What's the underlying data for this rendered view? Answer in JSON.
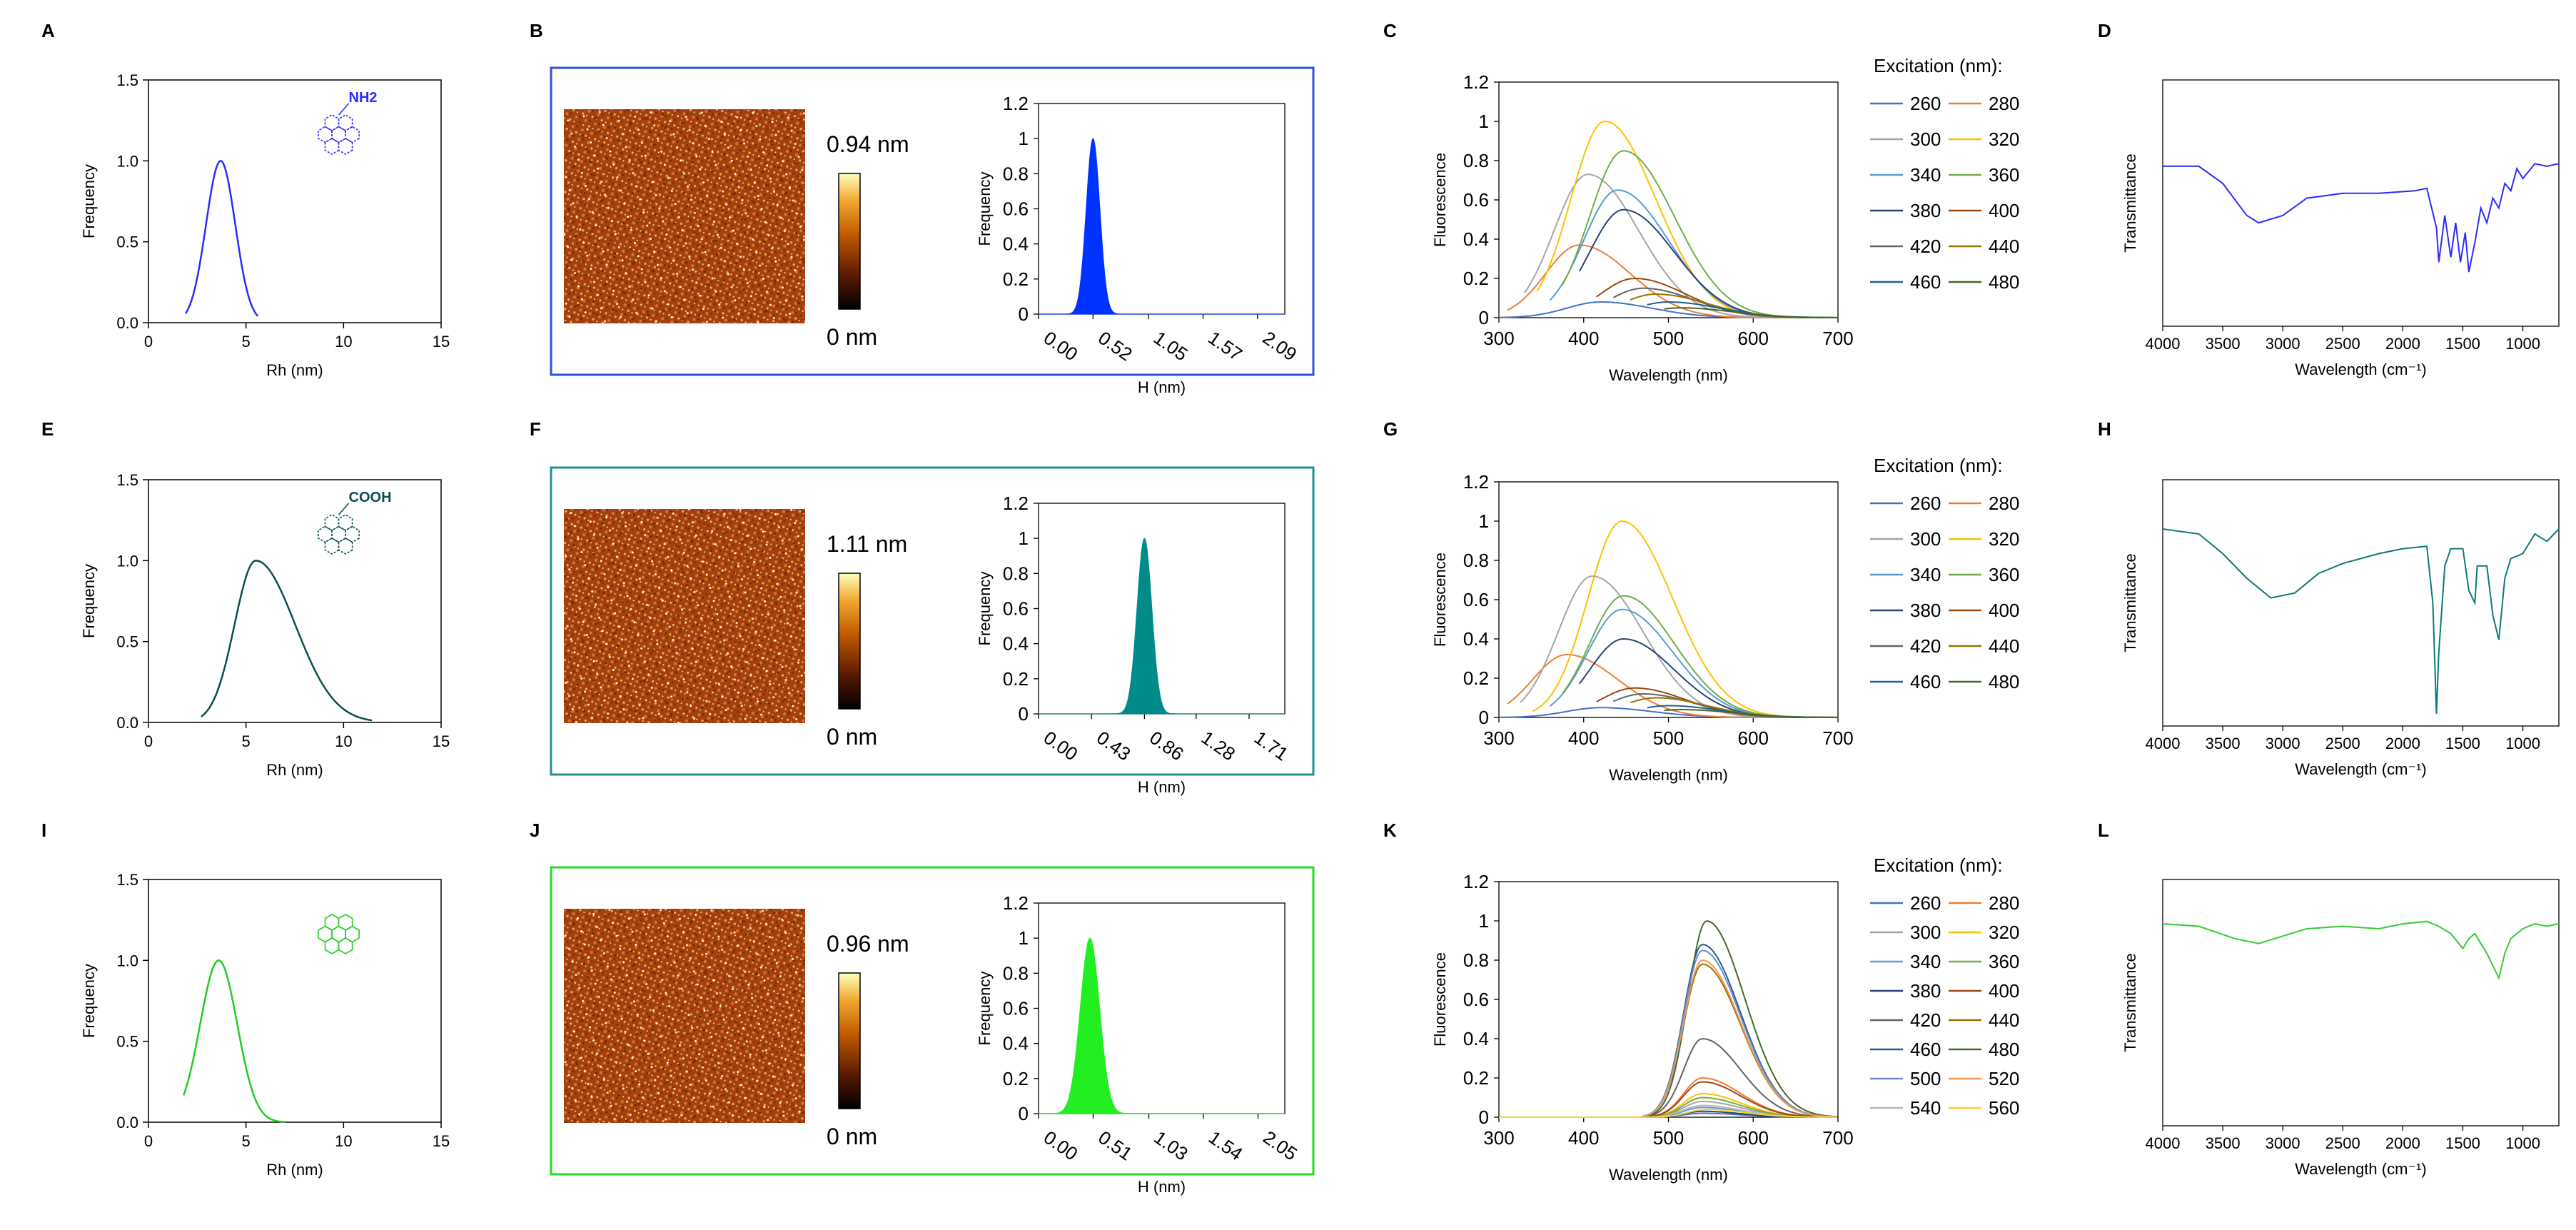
{
  "panels": {
    "labels": [
      "A",
      "B",
      "C",
      "D",
      "E",
      "F",
      "G",
      "H",
      "I",
      "J",
      "K",
      "L"
    ]
  },
  "chart_data": [
    {
      "panel": "A",
      "type": "line",
      "xlabel": "Rh (nm)",
      "ylabel": "Frequency",
      "xlim": [
        0,
        15
      ],
      "ylim": [
        0,
        1.5
      ],
      "xticks": [
        "0",
        "5",
        "10",
        "15"
      ],
      "yticks": [
        "0.0",
        "0.5",
        "1.0",
        "1.5"
      ],
      "series": [
        {
          "color": "#2b2bff",
          "center": 3.7,
          "width": 0.75,
          "x": [
            1.9,
            5.6
          ],
          "values": [
            [
              1.9,
              0.0
            ],
            [
              2.5,
              0.14
            ],
            [
              3.0,
              0.58
            ],
            [
              3.7,
              1.0
            ],
            [
              4.4,
              0.58
            ],
            [
              4.9,
              0.14
            ],
            [
              5.6,
              0.0
            ]
          ]
        }
      ],
      "annotation": "NH2"
    },
    {
      "panel": "E",
      "type": "line",
      "xlabel": "Rh (nm)",
      "ylabel": "Frequency",
      "xlim": [
        0,
        15
      ],
      "ylim": [
        0,
        1.5
      ],
      "xticks": [
        "0",
        "5",
        "10",
        "15"
      ],
      "yticks": [
        "0.0",
        "0.5",
        "1.0",
        "1.5"
      ],
      "series": [
        {
          "color": "#0b4f4f",
          "center": 5.5,
          "width": 1.55,
          "x": [
            2.7,
            11.5
          ],
          "values": [
            [
              3.2,
              0.05
            ],
            [
              4.5,
              0.6
            ],
            [
              5.5,
              1.0
            ],
            [
              6.5,
              0.7
            ],
            [
              8.0,
              0.25
            ],
            [
              10.0,
              0.03
            ],
            [
              11.5,
              0.0
            ]
          ]
        }
      ],
      "annotation": "COOH"
    },
    {
      "panel": "I",
      "type": "line",
      "xlabel": "Rh (nm)",
      "ylabel": "Frequency",
      "xlim": [
        0,
        15
      ],
      "ylim": [
        0,
        1.5
      ],
      "xticks": [
        "0",
        "5",
        "10",
        "15"
      ],
      "yticks": [
        "0.0",
        "0.5",
        "1.0",
        "1.5"
      ],
      "series": [
        {
          "color": "#22cc22",
          "center": 3.6,
          "width": 0.95,
          "x": [
            1.8,
            7.0
          ],
          "values": [
            [
              2.0,
              0.02
            ],
            [
              2.8,
              0.5
            ],
            [
              3.6,
              1.0
            ],
            [
              4.5,
              0.5
            ],
            [
              5.5,
              0.08
            ],
            [
              7.0,
              0.0
            ]
          ]
        }
      ]
    },
    {
      "panel": "B",
      "type": "bar",
      "xlabel": "H (nm)",
      "ylabel": "Frequency",
      "ylim": [
        0,
        1.2
      ],
      "yticks": [
        "0",
        "0.2",
        "0.4",
        "0.6",
        "0.8",
        "1",
        "1.2"
      ],
      "xticks": [
        "0.00",
        "0.52",
        "1.05",
        "1.57",
        "2.09"
      ],
      "xmax": 2.35,
      "colorbar": {
        "max": "0.94 nm",
        "min": "0 nm"
      },
      "series": [
        {
          "color": "#0033ff",
          "center": 0.52,
          "width": 0.065
        }
      ]
    },
    {
      "panel": "F",
      "type": "bar",
      "xlabel": "H (nm)",
      "ylabel": "Frequency",
      "ylim": [
        0,
        1.2
      ],
      "yticks": [
        "0",
        "0.2",
        "0.4",
        "0.6",
        "0.8",
        "1",
        "1.2"
      ],
      "xticks": [
        "0.00",
        "0.43",
        "0.86",
        "1.28",
        "1.71"
      ],
      "xmax": 2.0,
      "colorbar": {
        "max": "1.11 nm",
        "min": "0 nm"
      },
      "series": [
        {
          "color": "#008b8b",
          "center": 0.86,
          "width": 0.06
        }
      ]
    },
    {
      "panel": "J",
      "type": "bar",
      "xlabel": "H (nm)",
      "ylabel": "Frequency",
      "ylim": [
        0,
        1.2
      ],
      "yticks": [
        "0",
        "0.2",
        "0.4",
        "0.6",
        "0.8",
        "1",
        "1.2"
      ],
      "xticks": [
        "0.00",
        "0.51",
        "1.03",
        "1.54",
        "2.05"
      ],
      "xmax": 2.3,
      "colorbar": {
        "max": "0.96 nm",
        "min": "0 nm"
      },
      "series": [
        {
          "color": "#22ee22",
          "center": 0.48,
          "width": 0.09
        }
      ]
    },
    {
      "panel": "C",
      "type": "line",
      "xlabel": "Wavelength (nm)",
      "ylabel": "Fluorescence",
      "xlim": [
        300,
        700
      ],
      "ylim": [
        0,
        1.2
      ],
      "xticks": [
        "300",
        "400",
        "500",
        "600",
        "700"
      ],
      "yticks": [
        "0",
        "0.2",
        "0.4",
        "0.6",
        "0.8",
        "1",
        "1.2"
      ],
      "legend_title": "Excitation (nm):",
      "series": [
        {
          "name": "260",
          "color": "#4472c4",
          "peak": 420,
          "amp": 0.08,
          "start": 300
        },
        {
          "name": "280",
          "color": "#ed7d31",
          "peak": 395,
          "amp": 0.37,
          "start": 310
        },
        {
          "name": "300",
          "color": "#a5a5a5",
          "peak": 405,
          "amp": 0.73,
          "start": 330
        },
        {
          "name": "320",
          "color": "#ffc000",
          "peak": 425,
          "amp": 1.0,
          "start": 345
        },
        {
          "name": "340",
          "color": "#5b9bd5",
          "peak": 440,
          "amp": 0.65,
          "start": 360
        },
        {
          "name": "360",
          "color": "#70ad47",
          "peak": 447,
          "amp": 0.85,
          "start": 375
        },
        {
          "name": "380",
          "color": "#264478",
          "peak": 447,
          "amp": 0.55,
          "start": 395
        },
        {
          "name": "400",
          "color": "#9e480e",
          "peak": 460,
          "amp": 0.2,
          "start": 415
        },
        {
          "name": "420",
          "color": "#636363",
          "peak": 470,
          "amp": 0.15,
          "start": 435
        },
        {
          "name": "440",
          "color": "#997300",
          "peak": 485,
          "amp": 0.12,
          "start": 455
        },
        {
          "name": "460",
          "color": "#255e91",
          "peak": 500,
          "amp": 0.08,
          "start": 475
        },
        {
          "name": "480",
          "color": "#43682b",
          "peak": 515,
          "amp": 0.05,
          "start": 495
        }
      ]
    },
    {
      "panel": "G",
      "type": "line",
      "xlabel": "Wavelength (nm)",
      "ylabel": "Fluorescence",
      "xlim": [
        300,
        700
      ],
      "ylim": [
        0,
        1.2
      ],
      "xticks": [
        "300",
        "400",
        "500",
        "600",
        "700"
      ],
      "yticks": [
        "0",
        "0.2",
        "0.4",
        "0.6",
        "0.8",
        "1",
        "1.2"
      ],
      "legend_title": "Excitation (nm):",
      "series": [
        {
          "name": "260",
          "color": "#4472c4",
          "peak": 420,
          "amp": 0.05,
          "start": 300
        },
        {
          "name": "280",
          "color": "#ed7d31",
          "peak": 380,
          "amp": 0.32,
          "start": 310
        },
        {
          "name": "300",
          "color": "#a5a5a5",
          "peak": 410,
          "amp": 0.72,
          "start": 325
        },
        {
          "name": "320",
          "color": "#ffc000",
          "peak": 445,
          "amp": 1.0,
          "start": 340
        },
        {
          "name": "340",
          "color": "#5b9bd5",
          "peak": 445,
          "amp": 0.55,
          "start": 360
        },
        {
          "name": "360",
          "color": "#70ad47",
          "peak": 447,
          "amp": 0.62,
          "start": 375
        },
        {
          "name": "380",
          "color": "#264478",
          "peak": 447,
          "amp": 0.4,
          "start": 395
        },
        {
          "name": "400",
          "color": "#9e480e",
          "peak": 460,
          "amp": 0.15,
          "start": 415
        },
        {
          "name": "420",
          "color": "#636363",
          "peak": 470,
          "amp": 0.12,
          "start": 435
        },
        {
          "name": "440",
          "color": "#997300",
          "peak": 485,
          "amp": 0.1,
          "start": 455
        },
        {
          "name": "460",
          "color": "#255e91",
          "peak": 500,
          "amp": 0.06,
          "start": 475
        },
        {
          "name": "480",
          "color": "#43682b",
          "peak": 515,
          "amp": 0.04,
          "start": 495
        }
      ]
    },
    {
      "panel": "K",
      "type": "line",
      "xlabel": "Wavelength (nm)",
      "ylabel": "Fluorescence",
      "xlim": [
        300,
        700
      ],
      "ylim": [
        0,
        1.2
      ],
      "xticks": [
        "300",
        "400",
        "500",
        "600",
        "700"
      ],
      "yticks": [
        "0",
        "0.2",
        "0.4",
        "0.6",
        "0.8",
        "1",
        "1.2"
      ],
      "legend_title": "Excitation (nm):",
      "series": [
        {
          "name": "260",
          "color": "#4472c4",
          "peak": 540,
          "amp": 0.02,
          "start": 300
        },
        {
          "name": "280",
          "color": "#ed7d31",
          "peak": 540,
          "amp": 0.2,
          "start": 300
        },
        {
          "name": "300",
          "color": "#a5a5a5",
          "peak": 540,
          "amp": 0.08,
          "start": 300
        },
        {
          "name": "320",
          "color": "#ffc000",
          "peak": 540,
          "amp": 0.12,
          "start": 300
        },
        {
          "name": "340",
          "color": "#5b9bd5",
          "peak": 540,
          "amp": 0.05,
          "start": 300
        },
        {
          "name": "360",
          "color": "#70ad47",
          "peak": 540,
          "amp": 0.1,
          "start": 300
        },
        {
          "name": "380",
          "color": "#264478",
          "peak": 540,
          "amp": 0.03,
          "start": 300
        },
        {
          "name": "400",
          "color": "#9e480e",
          "peak": 540,
          "amp": 0.18,
          "start": 300
        },
        {
          "name": "420",
          "color": "#636363",
          "peak": 540,
          "amp": 0.4,
          "start": 300
        },
        {
          "name": "440",
          "color": "#997300",
          "peak": 540,
          "amp": 0.78,
          "start": 300
        },
        {
          "name": "460",
          "color": "#255e91",
          "peak": 540,
          "amp": 0.88,
          "start": 300
        },
        {
          "name": "480",
          "color": "#43682b",
          "peak": 545,
          "amp": 1.0,
          "start": 300
        },
        {
          "name": "500",
          "color": "#698ed0",
          "peak": 540,
          "amp": 0.85,
          "start": 300
        },
        {
          "name": "520",
          "color": "#f1975a",
          "peak": 540,
          "amp": 0.8,
          "start": 300
        },
        {
          "name": "540",
          "color": "#b7b7b7",
          "peak": 540,
          "amp": 0.06,
          "start": 300
        },
        {
          "name": "560",
          "color": "#ffcd33",
          "peak": 545,
          "amp": 0.04,
          "start": 300
        }
      ]
    },
    {
      "panel": "D",
      "type": "line",
      "xlabel": "Wavelength (cm⁻¹)",
      "ylabel": "Transmittance",
      "xlim": [
        4000,
        700
      ],
      "reversed": true,
      "xticks": [
        "4000",
        "3500",
        "3000",
        "2500",
        "2000",
        "1500",
        "1000"
      ],
      "series": [
        {
          "color": "#2b2bff",
          "values": [
            [
              4000,
              0.35
            ],
            [
              3700,
              0.35
            ],
            [
              3500,
              0.42
            ],
            [
              3300,
              0.55
            ],
            [
              3200,
              0.58
            ],
            [
              3000,
              0.55
            ],
            [
              2800,
              0.48
            ],
            [
              2500,
              0.46
            ],
            [
              2200,
              0.46
            ],
            [
              1900,
              0.45
            ],
            [
              1800,
              0.44
            ],
            [
              1720,
              0.6
            ],
            [
              1700,
              0.74
            ],
            [
              1650,
              0.55
            ],
            [
              1600,
              0.72
            ],
            [
              1560,
              0.58
            ],
            [
              1520,
              0.74
            ],
            [
              1480,
              0.62
            ],
            [
              1450,
              0.78
            ],
            [
              1400,
              0.66
            ],
            [
              1350,
              0.52
            ],
            [
              1300,
              0.58
            ],
            [
              1250,
              0.48
            ],
            [
              1200,
              0.52
            ],
            [
              1150,
              0.42
            ],
            [
              1100,
              0.45
            ],
            [
              1050,
              0.36
            ],
            [
              1000,
              0.4
            ],
            [
              900,
              0.34
            ],
            [
              800,
              0.35
            ],
            [
              700,
              0.34
            ]
          ]
        }
      ]
    },
    {
      "panel": "H",
      "type": "line",
      "xlabel": "Wavelength (cm⁻¹)",
      "ylabel": "Transmittance",
      "xlim": [
        4000,
        700
      ],
      "reversed": true,
      "xticks": [
        "4000",
        "3500",
        "3000",
        "2500",
        "2000",
        "1500",
        "1000"
      ],
      "series": [
        {
          "color": "#0b7a7a",
          "values": [
            [
              4000,
              0.2
            ],
            [
              3700,
              0.22
            ],
            [
              3500,
              0.3
            ],
            [
              3300,
              0.4
            ],
            [
              3100,
              0.48
            ],
            [
              2900,
              0.46
            ],
            [
              2700,
              0.38
            ],
            [
              2500,
              0.34
            ],
            [
              2200,
              0.3
            ],
            [
              2000,
              0.28
            ],
            [
              1800,
              0.27
            ],
            [
              1750,
              0.5
            ],
            [
              1720,
              0.95
            ],
            [
              1700,
              0.7
            ],
            [
              1650,
              0.35
            ],
            [
              1600,
              0.28
            ],
            [
              1500,
              0.28
            ],
            [
              1450,
              0.45
            ],
            [
              1400,
              0.5
            ],
            [
              1380,
              0.35
            ],
            [
              1300,
              0.35
            ],
            [
              1250,
              0.55
            ],
            [
              1200,
              0.65
            ],
            [
              1150,
              0.4
            ],
            [
              1100,
              0.32
            ],
            [
              1000,
              0.3
            ],
            [
              900,
              0.22
            ],
            [
              800,
              0.25
            ],
            [
              700,
              0.2
            ]
          ]
        }
      ]
    },
    {
      "panel": "L",
      "type": "line",
      "xlabel": "Wavelength (cm⁻¹)",
      "ylabel": "Transmittance",
      "xlim": [
        4000,
        700
      ],
      "reversed": true,
      "xticks": [
        "4000",
        "3500",
        "3000",
        "2500",
        "2000",
        "1500",
        "1000"
      ],
      "series": [
        {
          "color": "#33cc33",
          "values": [
            [
              4000,
              0.18
            ],
            [
              3700,
              0.19
            ],
            [
              3400,
              0.24
            ],
            [
              3200,
              0.26
            ],
            [
              3000,
              0.23
            ],
            [
              2800,
              0.2
            ],
            [
              2500,
              0.19
            ],
            [
              2200,
              0.2
            ],
            [
              2000,
              0.18
            ],
            [
              1800,
              0.17
            ],
            [
              1700,
              0.19
            ],
            [
              1600,
              0.22
            ],
            [
              1500,
              0.28
            ],
            [
              1450,
              0.24
            ],
            [
              1400,
              0.22
            ],
            [
              1350,
              0.26
            ],
            [
              1300,
              0.3
            ],
            [
              1250,
              0.35
            ],
            [
              1200,
              0.4
            ],
            [
              1150,
              0.3
            ],
            [
              1100,
              0.24
            ],
            [
              1000,
              0.2
            ],
            [
              900,
              0.18
            ],
            [
              800,
              0.19
            ],
            [
              700,
              0.18
            ]
          ]
        }
      ]
    }
  ]
}
